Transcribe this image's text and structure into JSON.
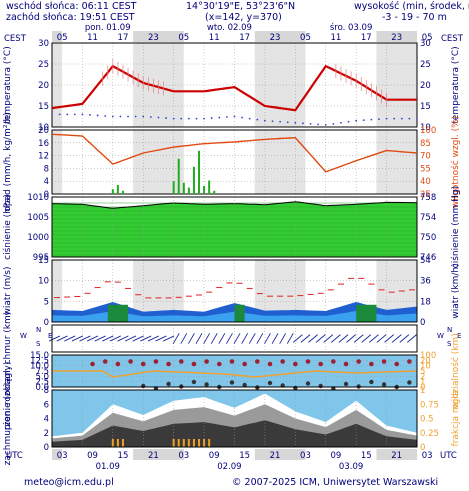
{
  "header": {
    "sunrise": "wschód słońca: 06:11 CEST",
    "sunset": "zachód słońca: 19:51 CEST",
    "coords": "14°30'19\"E, 53°23'6\"N",
    "grid": "(x=142, y=370)",
    "elev_title": "wysokość (min, środek, max)",
    "elev_values": "-3 - 19 - 70 m",
    "tz_left": "CEST",
    "tz_right": "CEST"
  },
  "timeline": {
    "day_labels": [
      "pon. 01.09",
      "wto. 02.09",
      "śro. 03.09"
    ],
    "top_hours": [
      "05",
      "11",
      "17",
      "23",
      "05",
      "11",
      "17",
      "23",
      "05",
      "11",
      "17",
      "23",
      "05"
    ],
    "bottom_hours": [
      "03",
      "09",
      "15",
      "21",
      "03",
      "09",
      "15",
      "21",
      "03",
      "09",
      "15",
      "21",
      "03"
    ],
    "bottom_dates": [
      "01.09",
      "02.09",
      "03.09"
    ],
    "utc_left": "UTC",
    "utc_right": "UTC"
  },
  "panels": {
    "temperature": {
      "label": "temperatura (°C)",
      "ticks": [
        "30",
        "25",
        "20",
        "15",
        "10"
      ]
    },
    "precip": {
      "label": "opad (mm/h, kg/m²/h)",
      "ticks": [
        "20",
        "16",
        "12",
        "8",
        "4",
        "0"
      ],
      "right_label": "wilgotność wzgl. (%)",
      "right_ticks": [
        "100",
        "85",
        "70",
        "55",
        "40",
        "25"
      ]
    },
    "pressure": {
      "label": "ciśnienie (hPa)",
      "ticks": [
        "1010",
        "1005",
        "1000",
        "995"
      ],
      "right_label": "ciśnienie (mm Hg)",
      "right_ticks": [
        "758",
        "754",
        "750",
        "746"
      ]
    },
    "wind": {
      "label": "wiatr (m/s)",
      "ticks": [
        "15",
        "10",
        "5",
        "0"
      ],
      "right_label": "wiatr (km/h)",
      "right_ticks": [
        "54",
        "36",
        "18",
        "0"
      ]
    },
    "direction": {
      "compass": [
        "W",
        "N",
        "S",
        "E"
      ]
    },
    "cloudbase": {
      "label": "pion. rozciągł. chmur (km)",
      "ticks": [
        "15.0",
        "12.5",
        "10.0",
        "7.5",
        "5.0",
        "2.5",
        "0.0"
      ],
      "right_label": "widzialność (km)",
      "right_ticks": [
        "100",
        "20",
        "10",
        "5",
        "2",
        "1",
        "0"
      ]
    },
    "cloud": {
      "label": "zachmurzenie (oktany)",
      "ticks": [
        "8",
        "6",
        "4",
        "2",
        "0"
      ],
      "right_label": "frakcja mgła",
      "right_ticks": [
        "1",
        "0.75",
        "0.5",
        "0.25",
        "0"
      ]
    }
  },
  "footer": {
    "email": "meteo@icm.edu.pl",
    "copyright": "© 2007-2025 ICM, Uniwersytet Warszawski"
  },
  "colors": {
    "text": "#00007a",
    "temp": "#cc0000",
    "dew": "#3344cc",
    "humidity": "#e04a10",
    "precip": "#22aa22",
    "pressure_fill": "#33cc33",
    "wind_fill": "#1f5fd0",
    "wind_gust": "#dd2222",
    "visibility": "#f0a030",
    "cloud_panel": "#7fc6ea"
  },
  "chart_data": [
    {
      "type": "line",
      "title": "temperatura",
      "x_hours_from_start": [
        0,
        6,
        12,
        18,
        24,
        30,
        36,
        42,
        48,
        54,
        60,
        66,
        72
      ],
      "series": [
        {
          "name": "temperatura",
          "values": [
            14.5,
            15.5,
            24.5,
            20.5,
            18.5,
            18.5,
            19.5,
            15.0,
            14.0,
            24.5,
            21.0,
            16.5,
            16.5
          ]
        },
        {
          "name": "punkt rosy",
          "values": [
            13.0,
            13.0,
            12.5,
            12.5,
            12.0,
            12.0,
            12.5,
            11.5,
            11.0,
            10.5,
            11.5,
            12.0,
            12.0
          ]
        }
      ],
      "ylim": [
        10,
        30
      ]
    },
    {
      "type": "bar",
      "title": "opad",
      "x_hours_from_start": [
        12,
        13,
        14,
        24,
        25,
        26,
        27,
        28,
        29,
        30,
        31,
        32
      ],
      "values": [
        1.5,
        2.8,
        1.0,
        4.0,
        11.0,
        3.5,
        2.0,
        8.5,
        13.5,
        2.5,
        4.2,
        1.0
      ],
      "humidity_series": {
        "x_hours_from_start": [
          0,
          6,
          12,
          18,
          24,
          30,
          36,
          42,
          48,
          54,
          60,
          66,
          72
        ],
        "values": [
          95,
          93,
          60,
          73,
          80,
          84,
          86,
          89,
          91,
          51,
          64,
          76,
          73
        ],
        "ylim": [
          25,
          100
        ]
      },
      "ylim": [
        0,
        20
      ]
    },
    {
      "type": "area",
      "title": "ciśnienie",
      "x_hours_from_start": [
        0,
        6,
        12,
        18,
        24,
        30,
        36,
        42,
        48,
        54,
        60,
        66,
        72
      ],
      "values": [
        1011.0,
        1010.8,
        1009.6,
        1010.4,
        1011.2,
        1010.8,
        1011.0,
        1010.7,
        1011.6,
        1010.4,
        1010.8,
        1011.4,
        1011.3
      ],
      "ylim": [
        995,
        1013
      ]
    },
    {
      "type": "area",
      "title": "wiatr",
      "x_hours_from_start": [
        0,
        6,
        12,
        18,
        24,
        30,
        36,
        42,
        48,
        54,
        60,
        66,
        72
      ],
      "series": [
        {
          "name": "wiatr",
          "values": [
            3.5,
            3.2,
            5.8,
            3.0,
            3.5,
            3.0,
            5.5,
            3.3,
            3.5,
            3.2,
            5.8,
            3.5,
            4.5
          ]
        },
        {
          "name": "porywy",
          "values": [
            7.0,
            7.5,
            12.5,
            7.0,
            7.0,
            8.0,
            12.0,
            7.5,
            7.5,
            8.5,
            13.5,
            8.5,
            9.5
          ]
        }
      ],
      "ylim": [
        0,
        18
      ]
    },
    {
      "type": "area",
      "title": "zachmurzenie",
      "x_hours_from_start": [
        0,
        6,
        12,
        18,
        24,
        30,
        36,
        42,
        48,
        54,
        60,
        66,
        72
      ],
      "values": [
        1.5,
        2.0,
        6.0,
        4.5,
        6.5,
        7.0,
        5.5,
        7.5,
        5.0,
        3.5,
        6.5,
        3.0,
        2.0
      ],
      "ylim": [
        0,
        8
      ]
    }
  ]
}
